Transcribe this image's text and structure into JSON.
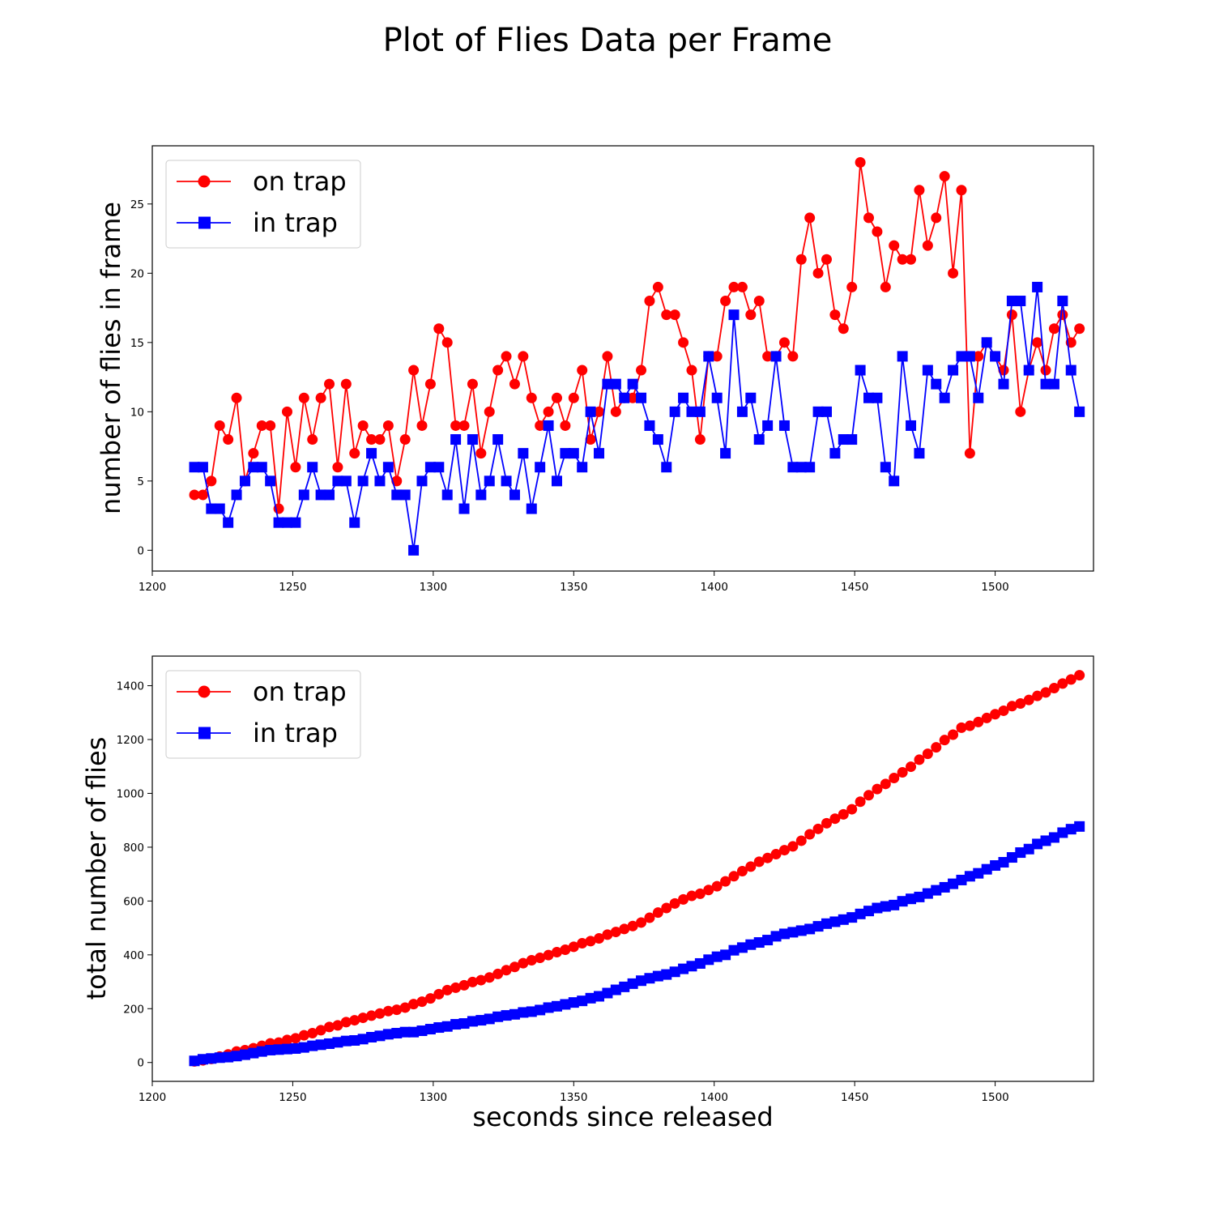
{
  "figure": {
    "title": "Plot of Flies Data per Frame"
  },
  "chart_data": [
    {
      "type": "line",
      "xlabel": "",
      "ylabel": "number of flies in frame",
      "xlim": [
        1200,
        1535
      ],
      "ylim": [
        -1.5,
        29.2
      ],
      "xticks": [
        1200,
        1250,
        1300,
        1350,
        1400,
        1450,
        1500
      ],
      "yticks": [
        0,
        5,
        10,
        15,
        20,
        25
      ],
      "grid": false,
      "legend": "upper-left",
      "x": [
        1215,
        1218,
        1221,
        1224,
        1227,
        1230,
        1233,
        1236,
        1239,
        1242,
        1245,
        1248,
        1251,
        1254,
        1257,
        1260,
        1263,
        1266,
        1269,
        1272,
        1275,
        1278,
        1281,
        1284,
        1287,
        1290,
        1293,
        1296,
        1299,
        1302,
        1305,
        1308,
        1311,
        1314,
        1317,
        1320,
        1323,
        1326,
        1329,
        1332,
        1335,
        1338,
        1341,
        1344,
        1347,
        1350,
        1353,
        1356,
        1359,
        1362,
        1365,
        1368,
        1371,
        1374,
        1377,
        1380,
        1383,
        1386,
        1389,
        1392,
        1395,
        1398,
        1401,
        1404,
        1407,
        1410,
        1413,
        1416,
        1419,
        1422,
        1425,
        1428,
        1431,
        1434,
        1437,
        1440,
        1443,
        1446,
        1449,
        1452,
        1455,
        1458,
        1461,
        1464,
        1467,
        1470,
        1473,
        1476,
        1479,
        1482,
        1485,
        1488,
        1491,
        1494,
        1497,
        1500,
        1503,
        1506,
        1509,
        1512,
        1515,
        1518,
        1521,
        1524,
        1527,
        1530
      ],
      "series": [
        {
          "name": "on trap",
          "color": "#ff0000",
          "marker": "circle",
          "values": [
            4,
            4,
            5,
            9,
            8,
            11,
            5,
            7,
            9,
            9,
            3,
            10,
            6,
            11,
            8,
            11,
            12,
            6,
            12,
            7,
            9,
            8,
            8,
            9,
            5,
            8,
            13,
            9,
            12,
            16,
            15,
            9,
            9,
            12,
            7,
            10,
            13,
            14,
            12,
            14,
            11,
            9,
            10,
            11,
            9,
            11,
            13,
            8,
            10,
            14,
            10,
            11,
            11,
            13,
            18,
            19,
            17,
            17,
            15,
            13,
            8,
            14,
            14,
            18,
            19,
            19,
            17,
            18,
            14,
            14,
            15,
            14,
            21,
            24,
            20,
            21,
            17,
            16,
            19,
            28,
            24,
            23,
            19,
            22,
            21,
            21,
            26,
            22,
            24,
            27,
            20,
            26,
            7,
            14,
            15,
            14,
            13,
            17,
            10,
            13,
            15,
            13,
            16,
            17,
            15,
            16
          ]
        },
        {
          "name": "in trap",
          "color": "#0000ff",
          "marker": "square",
          "values": [
            6,
            6,
            3,
            3,
            2,
            4,
            5,
            6,
            6,
            5,
            2,
            2,
            2,
            4,
            6,
            4,
            4,
            5,
            5,
            2,
            5,
            7,
            5,
            6,
            4,
            4,
            0,
            5,
            6,
            6,
            4,
            8,
            3,
            8,
            4,
            5,
            8,
            5,
            4,
            7,
            3,
            6,
            9,
            5,
            7,
            7,
            6,
            10,
            7,
            12,
            12,
            11,
            12,
            11,
            9,
            8,
            6,
            10,
            11,
            10,
            10,
            14,
            11,
            7,
            17,
            10,
            11,
            8,
            9,
            14,
            9,
            6,
            6,
            6,
            10,
            10,
            7,
            8,
            8,
            13,
            11,
            11,
            6,
            5,
            14,
            9,
            7,
            13,
            12,
            11,
            13,
            14,
            14,
            11,
            15,
            14,
            12,
            18,
            18,
            13,
            19,
            12,
            12,
            18,
            13,
            10
          ]
        }
      ]
    },
    {
      "type": "line",
      "xlabel": "seconds since released",
      "ylabel": "total number of flies",
      "xlim": [
        1200,
        1535
      ],
      "ylim": [
        -70,
        1510
      ],
      "xticks": [
        1200,
        1250,
        1300,
        1350,
        1400,
        1450,
        1500
      ],
      "yticks": [
        0,
        200,
        400,
        600,
        800,
        1000,
        1200,
        1400
      ],
      "grid": false,
      "legend": "upper-left",
      "cumulative": true,
      "series": [
        {
          "name": "on trap",
          "color": "#ff0000",
          "marker": "circle"
        },
        {
          "name": "in trap",
          "color": "#0000ff",
          "marker": "square"
        }
      ]
    }
  ]
}
